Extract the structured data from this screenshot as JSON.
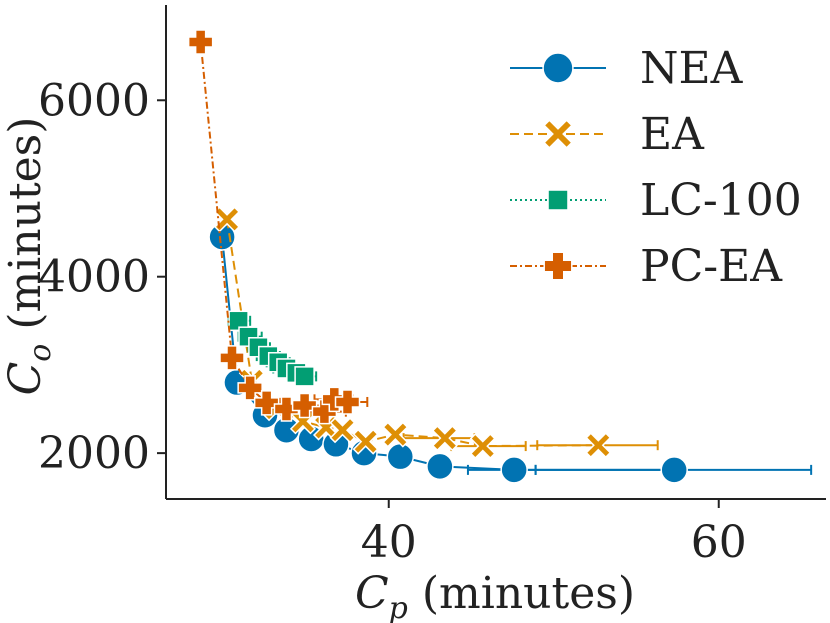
{
  "chart_data": {
    "type": "line",
    "title": "",
    "xlabel": "C_p (minutes)",
    "ylabel": "C_o (minutes)",
    "xlim": [
      26.5,
      66.5
    ],
    "ylim": [
      1480,
      7080
    ],
    "xticks": [
      40,
      60
    ],
    "yticks": [
      2000,
      4000,
      6000
    ],
    "grid": false,
    "legend_position": "top-right",
    "series": [
      {
        "name": "NEA",
        "color": "#0173b2",
        "linestyle": "solid",
        "marker": "circle",
        "points": [
          {
            "x": 29.9,
            "y": 4450
          },
          {
            "x": 30.8,
            "y": 2800
          },
          {
            "x": 32.5,
            "y": 2430
          },
          {
            "x": 33.8,
            "y": 2260
          },
          {
            "x": 35.3,
            "y": 2160
          },
          {
            "x": 36.8,
            "y": 2100
          },
          {
            "x": 38.5,
            "y": 2000
          },
          {
            "x": 40.7,
            "y": 1960
          },
          {
            "x": 43.1,
            "y": 1850,
            "xerr": [
              42.8,
              43.5
            ]
          },
          {
            "x": 47.6,
            "y": 1810,
            "xerr": [
              44.8,
              48.9
            ]
          },
          {
            "x": 57.3,
            "y": 1810,
            "xerr": [
              48.9,
              65.6
            ]
          }
        ]
      },
      {
        "name": "EA",
        "color": "#de8f05",
        "linestyle": "dashed",
        "marker": "x",
        "points": [
          {
            "x": 30.2,
            "y": 4650
          },
          {
            "x": 31.7,
            "y": 2820
          },
          {
            "x": 33.2,
            "y": 2510
          },
          {
            "x": 34.8,
            "y": 2360
          },
          {
            "x": 36.2,
            "y": 2290
          },
          {
            "x": 37.2,
            "y": 2260
          },
          {
            "x": 38.6,
            "y": 2130
          },
          {
            "x": 40.4,
            "y": 2210
          },
          {
            "x": 43.4,
            "y": 2170,
            "xerr": [
              40.9,
              45.2
            ]
          },
          {
            "x": 45.7,
            "y": 2080,
            "xerr": [
              43.8,
              48.3
            ]
          },
          {
            "x": 52.7,
            "y": 2090,
            "xerr": [
              49.0,
              56.3
            ]
          }
        ]
      },
      {
        "name": "LC-100",
        "color": "#029e73",
        "linestyle": "dotted",
        "marker": "square",
        "points": [
          {
            "x": 30.9,
            "y": 3500,
            "xerr": [
              30.3,
              31.6
            ]
          },
          {
            "x": 31.5,
            "y": 3320,
            "xerr": [
              30.9,
              32.3
            ]
          },
          {
            "x": 32.1,
            "y": 3200,
            "xerr": [
              31.5,
              32.8
            ]
          },
          {
            "x": 32.7,
            "y": 3100,
            "xerr": [
              32.0,
              33.4
            ]
          },
          {
            "x": 33.3,
            "y": 3030,
            "xerr": [
              32.6,
              34.0
            ]
          },
          {
            "x": 33.8,
            "y": 2960,
            "xerr": [
              33.0,
              34.6
            ]
          },
          {
            "x": 34.4,
            "y": 2910,
            "xerr": [
              33.6,
              35.1
            ]
          },
          {
            "x": 34.9,
            "y": 2870,
            "xerr": [
              34.2,
              35.6
            ]
          }
        ]
      },
      {
        "name": "PC-EA",
        "color": "#d55e00",
        "linestyle": "dashdot",
        "marker": "plus",
        "points": [
          {
            "x": 28.6,
            "y": 6660
          },
          {
            "x": 30.5,
            "y": 3080
          },
          {
            "x": 31.6,
            "y": 2740,
            "xerr": [
              31.1,
              32.1
            ]
          },
          {
            "x": 32.6,
            "y": 2570,
            "xerr": [
              32.0,
              33.4
            ]
          },
          {
            "x": 33.8,
            "y": 2500,
            "xerr": [
              32.9,
              34.8
            ]
          },
          {
            "x": 34.9,
            "y": 2540,
            "xerr": [
              33.8,
              36.2
            ]
          },
          {
            "x": 36.1,
            "y": 2470,
            "xerr": [
              34.9,
              37.4
            ]
          },
          {
            "x": 36.7,
            "y": 2610,
            "xerr": [
              35.5,
              37.8
            ]
          },
          {
            "x": 37.5,
            "y": 2580,
            "xerr": [
              36.3,
              38.7
            ]
          }
        ]
      }
    ]
  }
}
